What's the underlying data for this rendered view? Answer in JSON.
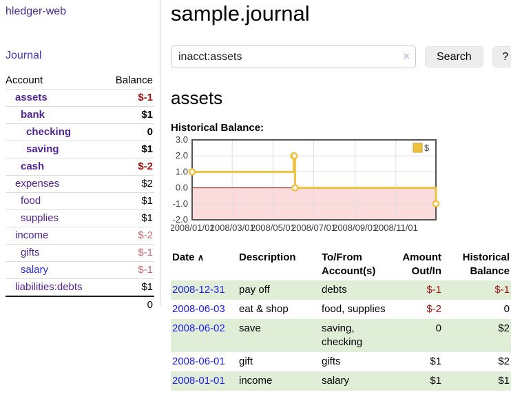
{
  "sidebar": {
    "app_title": "hledger-web",
    "nav_journal_label": "Journal",
    "accounts_table": {
      "headers": [
        "Account",
        "Balance"
      ],
      "rows": [
        {
          "account": "assets",
          "indent": 1,
          "bold": true,
          "balance": "$-1",
          "balance_style": "neg-strong",
          "bold_balance": true
        },
        {
          "account": "bank",
          "indent": 2,
          "bold": true,
          "balance": "$1",
          "balance_style": "",
          "bold_balance": true
        },
        {
          "account": "checking",
          "indent": 3,
          "bold": true,
          "balance": "0",
          "balance_style": "",
          "bold_balance": true
        },
        {
          "account": "saving",
          "indent": 3,
          "bold": true,
          "balance": "$1",
          "balance_style": "",
          "bold_balance": true
        },
        {
          "account": "cash",
          "indent": 2,
          "bold": true,
          "balance": "$-2",
          "balance_style": "neg-strong",
          "bold_balance": true
        },
        {
          "account": "expenses",
          "indent": 1,
          "bold": false,
          "balance": "$2",
          "balance_style": "",
          "bold_balance": false
        },
        {
          "account": "food",
          "indent": 2,
          "bold": false,
          "balance": "$1",
          "balance_style": "",
          "bold_balance": false
        },
        {
          "account": "supplies",
          "indent": 2,
          "bold": false,
          "balance": "$1",
          "balance_style": "",
          "bold_balance": false
        },
        {
          "account": "income",
          "indent": 1,
          "bold": false,
          "balance": "$-2",
          "balance_style": "neg-muted",
          "bold_balance": false
        },
        {
          "account": "gifts",
          "indent": 2,
          "bold": false,
          "balance": "$-1",
          "balance_style": "neg-muted",
          "bold_balance": false
        },
        {
          "account": "salary",
          "indent": 2,
          "bold": false,
          "blue": true,
          "balance": "$-1",
          "balance_style": "neg-muted",
          "bold_balance": false
        },
        {
          "account": "liabilities:debts",
          "indent": 1,
          "bold": false,
          "balance": "$1",
          "balance_style": "",
          "bold_balance": false
        }
      ],
      "total": "0"
    }
  },
  "main": {
    "title": "sample.journal",
    "search": {
      "value": "inacct:assets",
      "button_label": "Search",
      "help_label": "?"
    },
    "account_heading": "assets",
    "register": {
      "headers": [
        "Date",
        "Description",
        "To/From Account(s)",
        "Amount Out/In",
        "Historical Balance"
      ],
      "rows": [
        {
          "date": "2008-12-31",
          "description": "pay off",
          "accounts": "debts",
          "amount": "$-1",
          "amount_negative": true,
          "balance": "$-1",
          "balance_negative": true
        },
        {
          "date": "2008-06-03",
          "description": "eat & shop",
          "accounts": "food, supplies",
          "amount": "$-2",
          "amount_negative": true,
          "balance": "0",
          "balance_negative": false
        },
        {
          "date": "2008-06-02",
          "description": "save",
          "accounts": "saving, checking",
          "amount": "0",
          "amount_negative": false,
          "balance": "$2",
          "balance_negative": false
        },
        {
          "date": "2008-06-01",
          "description": "gift",
          "accounts": "gifts",
          "amount": "$1",
          "amount_negative": false,
          "balance": "$2",
          "balance_negative": false
        },
        {
          "date": "2008-01-01",
          "description": "income",
          "accounts": "salary",
          "amount": "$1",
          "amount_negative": false,
          "balance": "$1",
          "balance_negative": false
        }
      ]
    }
  },
  "chart_data": {
    "type": "line",
    "step": true,
    "title": "Historical Balance:",
    "series": [
      {
        "name": "$",
        "color": "#edc240",
        "points": [
          [
            "2008-01-01",
            1
          ],
          [
            "2008-06-01",
            2
          ],
          [
            "2008-06-02",
            2
          ],
          [
            "2008-06-03",
            0
          ],
          [
            "2008-12-31",
            -1
          ]
        ]
      }
    ],
    "x_range": [
      "2008-01-01",
      "2008-12-31"
    ],
    "x_ticks": [
      "2008/01/01",
      "2008/03/01",
      "2008/05/01",
      "2008/07/01",
      "2008/09/01",
      "2008/11/01"
    ],
    "y_ticks": [
      3.0,
      2.0,
      1.0,
      0.0,
      -1.0,
      -2.0
    ],
    "y_tick_labels": [
      "3.0",
      "2.0",
      "1.0",
      "0.0",
      "-1.0",
      "-2.0"
    ],
    "ylim": [
      -2,
      3
    ],
    "grid": true,
    "legend_position": "top-right",
    "legend_label": "$",
    "negative_region_color": "#fbdbdb",
    "zero_line_color": "#8b1a1a",
    "grid_color": "#dedede",
    "border_color": "#545454"
  },
  "icons": {
    "clear": "×",
    "sort_asc": "∧"
  },
  "colors": {
    "link_purple": "#522494",
    "link_blue": "#1e1ee6",
    "negative_strong": "#a31111",
    "negative_muted": "#c5696f",
    "row_stripe_green": "#e0eed8",
    "chart_series_gold": "#edc240"
  }
}
